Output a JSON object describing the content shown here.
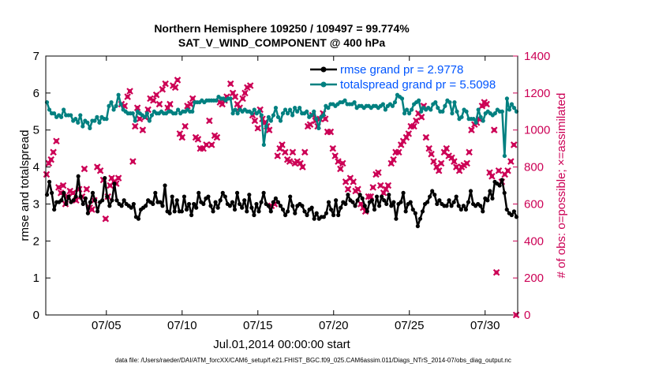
{
  "chart_data": {
    "type": "line",
    "title_line1": "Northern Hemisphere 109250 / 109497 = 99.774%",
    "title_line2": "SAT_V_WIND_COMPONENT @ 400 hPa",
    "xlabel": "Jul.01,2014 00:00:00 start",
    "ylabel_left": "rmse and totalspread",
    "ylabel_right": "# of obs: o=possible; ×=assimilated",
    "footer": "data file: /Users/raeder/DAI/ATM_forcXX/CAM6_setup/f.e21.FHIST_BGC.f09_025.CAM6assim.011/Diags_NTrS_2014-07/obs_diag_output.nc",
    "xlim": [
      1.0,
      32.15
    ],
    "ylim_left": [
      0,
      7
    ],
    "ylim_right": [
      0,
      1400
    ],
    "x_ticks": [
      5,
      10,
      15,
      20,
      25,
      30
    ],
    "x_tick_labels": [
      "07/05",
      "07/10",
      "07/15",
      "07/20",
      "07/25",
      "07/30"
    ],
    "y_left_ticks": [
      "0",
      "1",
      "2",
      "3",
      "4",
      "5",
      "6",
      "7"
    ],
    "y_right_ticks": [
      "0",
      "200",
      "400",
      "600",
      "800",
      "1000",
      "1200",
      "1400"
    ],
    "colors": {
      "rmse": "#000000",
      "spread": "#008080",
      "obs": "#cc0055",
      "legend_text": "#0055ff",
      "axis": "#000000"
    },
    "legend": [
      "rmse grand pr = 2.9778",
      "totalspread grand pr = 5.5098"
    ],
    "series": [
      {
        "name": "rmse",
        "values": [
          3.25,
          3.6,
          3.3,
          2.85,
          3.05,
          3.05,
          3.1,
          3.3,
          3.0,
          3.2,
          3.05,
          3.1,
          3.2,
          3.75,
          3.2,
          3.0,
          3.15,
          2.75,
          3.05,
          3.3,
          3.1,
          2.8,
          3.05,
          3.1,
          3.7,
          3.2,
          2.95,
          3.1,
          3.55,
          3.1,
          3.0,
          2.95,
          3.1,
          3.0,
          2.95,
          2.9,
          3.0,
          2.65,
          2.6,
          2.85,
          2.9,
          2.95,
          3.1,
          3.05,
          3.0,
          3.3,
          3.05,
          3.05,
          2.95,
          3.5,
          2.8,
          2.75,
          3.2,
          2.8,
          3.1,
          2.8,
          2.8,
          3.2,
          2.85,
          3.0,
          2.7,
          3.0,
          2.9,
          3.3,
          3.05,
          3.0,
          3.15,
          3.2,
          2.95,
          2.8,
          3.05,
          2.9,
          3.1,
          3.3,
          3.2,
          3.0,
          2.95,
          3.05,
          2.85,
          3.3,
          3.0,
          2.9,
          3.1,
          2.8,
          3.25,
          2.9,
          2.7,
          3.0,
          2.8,
          3.05,
          3.3,
          3.0,
          2.95,
          2.8,
          3.05,
          3.15,
          3.05,
          2.95,
          2.85,
          2.7,
          2.8,
          3.2,
          2.95,
          2.75,
          2.95,
          3.0,
          2.95,
          2.8,
          2.7,
          2.85,
          2.9,
          2.6,
          2.75,
          2.6,
          2.65,
          2.65,
          2.75,
          3.05,
          2.85,
          2.7,
          3.1,
          2.7,
          2.9,
          3.05,
          3.0,
          3.25,
          3.1,
          3.05,
          2.95,
          3.1,
          3.25,
          3.15,
          2.95,
          2.8,
          3.05,
          3.1,
          2.85,
          3.2,
          2.95,
          3.2,
          3.1,
          3.0,
          3.25,
          2.95,
          3.05,
          2.6,
          3.0,
          3.05,
          3.3,
          2.8,
          3.0,
          3.05,
          2.85,
          2.75,
          2.4,
          2.6,
          2.8,
          3.0,
          3.05,
          3.2,
          3.35,
          3.25,
          3.0,
          3.1,
          3.0,
          2.95,
          2.95,
          3.1,
          2.95,
          3.05,
          3.2,
          2.95,
          2.85,
          2.95,
          2.85,
          3.05,
          3.35,
          3.0,
          2.95,
          3.0,
          2.95,
          2.8,
          3.15,
          3.1,
          3.35,
          3.15,
          3.6,
          3.55,
          3.5,
          3.65,
          3.3,
          2.85,
          2.75,
          2.7,
          2.8,
          2.65
        ]
      },
      {
        "name": "totalspread",
        "values": [
          5.75,
          5.55,
          5.45,
          5.45,
          5.35,
          5.4,
          5.35,
          5.55,
          5.4,
          5.4,
          5.4,
          5.25,
          5.3,
          5.2,
          5.4,
          5.1,
          5.25,
          5.2,
          5.05,
          5.25,
          5.25,
          5.35,
          5.2,
          5.35,
          5.3,
          5.3,
          5.65,
          5.75,
          5.55,
          5.65,
          5.95,
          5.7,
          5.55,
          5.5,
          5.45,
          5.45,
          5.45,
          5.25,
          5.5,
          5.45,
          5.4,
          5.35,
          5.45,
          5.25,
          5.4,
          5.5,
          5.45,
          5.45,
          5.5,
          5.45,
          5.45,
          5.5,
          5.5,
          5.45,
          5.45,
          5.55,
          5.45,
          5.5,
          5.5,
          5.55,
          5.5,
          5.5,
          5.75,
          5.75,
          5.75,
          5.8,
          5.75,
          5.8,
          5.8,
          5.8,
          5.8,
          5.8,
          5.9,
          5.85,
          5.85,
          5.8,
          5.85,
          5.85,
          5.45,
          5.55,
          5.45,
          5.55,
          5.5,
          5.55,
          5.5,
          5.5,
          5.45,
          5.55,
          5.45,
          5.5,
          5.4,
          4.6,
          5.1,
          5.35,
          5.25,
          5.4,
          5.6,
          5.35,
          5.25,
          5.45,
          5.55,
          5.45,
          5.55,
          5.4,
          5.6,
          5.5,
          5.6,
          5.45,
          5.45,
          5.5,
          5.35,
          5.4,
          5.5,
          5.3,
          5.05,
          5.35,
          5.4,
          5.65,
          5.6,
          5.7,
          5.7,
          5.65,
          5.7,
          5.75,
          5.75,
          5.8,
          5.7,
          5.7,
          5.7,
          5.75,
          5.6,
          5.65,
          5.65,
          5.6,
          5.65,
          5.65,
          5.6,
          5.65,
          5.65,
          5.6,
          5.65,
          5.7,
          5.55,
          5.65,
          5.7,
          5.65,
          5.75,
          5.95,
          5.9,
          5.85,
          5.45,
          5.55,
          5.45,
          5.55,
          5.7,
          5.75,
          5.8,
          5.5,
          5.6,
          5.55,
          5.6,
          5.55,
          5.7,
          5.75,
          5.6,
          5.5,
          5.5,
          5.65,
          5.8,
          5.75,
          5.45,
          5.75,
          5.5,
          5.3,
          5.35,
          5.55,
          5.5,
          5.3,
          5.3,
          5.3,
          5.2,
          5.55,
          5.35,
          5.25,
          5.45,
          5.5,
          5.45,
          5.4,
          5.45,
          5.55,
          5.5,
          5.5,
          4.3,
          5.85,
          5.55,
          5.7,
          5.6,
          5.5
        ]
      }
    ],
    "obs_points": [
      [
        1.05,
        760
      ],
      [
        1.2,
        820
      ],
      [
        1.35,
        840
      ],
      [
        1.5,
        880
      ],
      [
        1.7,
        940
      ],
      [
        1.85,
        690
      ],
      [
        2.0,
        660
      ],
      [
        2.15,
        700
      ],
      [
        2.3,
        600
      ],
      [
        2.45,
        640
      ],
      [
        2.6,
        670
      ],
      [
        2.8,
        660
      ],
      [
        3.0,
        620
      ],
      [
        3.2,
        680
      ],
      [
        3.4,
        640
      ],
      [
        3.55,
        790
      ],
      [
        3.7,
        680
      ],
      [
        3.9,
        580
      ],
      [
        4.05,
        570
      ],
      [
        4.2,
        620
      ],
      [
        4.4,
        800
      ],
      [
        4.6,
        780
      ],
      [
        4.8,
        730
      ],
      [
        4.95,
        520
      ],
      [
        5.1,
        640
      ],
      [
        5.25,
        700
      ],
      [
        5.35,
        740
      ],
      [
        5.5,
        720
      ],
      [
        5.65,
        710
      ],
      [
        5.8,
        740
      ],
      [
        6.0,
        1140
      ],
      [
        6.2,
        1130
      ],
      [
        6.4,
        1180
      ],
      [
        6.55,
        1210
      ],
      [
        6.75,
        830
      ],
      [
        6.9,
        1020
      ],
      [
        7.05,
        1120
      ],
      [
        7.2,
        1060
      ],
      [
        7.4,
        1000
      ],
      [
        7.55,
        1070
      ],
      [
        7.75,
        1110
      ],
      [
        7.9,
        1170
      ],
      [
        8.1,
        1160
      ],
      [
        8.3,
        1190
      ],
      [
        8.5,
        1140
      ],
      [
        8.7,
        1220
      ],
      [
        8.9,
        1250
      ],
      [
        9.05,
        1120
      ],
      [
        9.2,
        1140
      ],
      [
        9.4,
        1240
      ],
      [
        9.55,
        1230
      ],
      [
        9.7,
        1270
      ],
      [
        9.85,
        980
      ],
      [
        10.0,
        960
      ],
      [
        10.2,
        1020
      ],
      [
        10.35,
        1130
      ],
      [
        10.55,
        1140
      ],
      [
        10.7,
        1170
      ],
      [
        10.9,
        960
      ],
      [
        11.05,
        950
      ],
      [
        11.2,
        900
      ],
      [
        11.4,
        900
      ],
      [
        11.6,
        920
      ],
      [
        11.8,
        1050
      ],
      [
        11.95,
        920
      ],
      [
        12.15,
        970
      ],
      [
        12.3,
        960
      ],
      [
        12.5,
        1150
      ],
      [
        12.65,
        1140
      ],
      [
        12.8,
        1160
      ],
      [
        12.95,
        1180
      ],
      [
        13.2,
        1250
      ],
      [
        13.35,
        1200
      ],
      [
        13.5,
        1180
      ],
      [
        13.65,
        1140
      ],
      [
        13.8,
        1120
      ],
      [
        14.0,
        1170
      ],
      [
        14.15,
        1200
      ],
      [
        14.3,
        1230
      ],
      [
        14.5,
        1240
      ],
      [
        14.65,
        1080
      ],
      [
        14.8,
        1050
      ],
      [
        15.0,
        1010
      ],
      [
        15.15,
        1110
      ],
      [
        15.3,
        1060
      ],
      [
        15.45,
        1040
      ],
      [
        15.6,
        1020
      ],
      [
        15.75,
        1000
      ],
      [
        15.9,
        590
      ],
      [
        16.1,
        600
      ],
      [
        16.3,
        860
      ],
      [
        16.45,
        900
      ],
      [
        16.6,
        920
      ],
      [
        16.8,
        880
      ],
      [
        16.95,
        840
      ],
      [
        17.1,
        830
      ],
      [
        17.3,
        880
      ],
      [
        17.45,
        820
      ],
      [
        17.6,
        830
      ],
      [
        17.8,
        820
      ],
      [
        17.95,
        800
      ],
      [
        18.1,
        880
      ],
      [
        18.3,
        1020
      ],
      [
        18.45,
        1030
      ],
      [
        18.6,
        1080
      ],
      [
        18.8,
        1050
      ],
      [
        18.95,
        1020
      ],
      [
        19.1,
        1060
      ],
      [
        19.3,
        1090
      ],
      [
        19.45,
        1060
      ],
      [
        19.6,
        990
      ],
      [
        19.8,
        990
      ],
      [
        19.95,
        900
      ],
      [
        20.1,
        860
      ],
      [
        20.3,
        830
      ],
      [
        20.45,
        790
      ],
      [
        20.6,
        820
      ],
      [
        20.8,
        720
      ],
      [
        20.95,
        680
      ],
      [
        21.1,
        740
      ],
      [
        21.3,
        720
      ],
      [
        21.45,
        670
      ],
      [
        21.6,
        680
      ],
      [
        21.8,
        600
      ],
      [
        21.95,
        580
      ],
      [
        22.1,
        560
      ],
      [
        22.3,
        640
      ],
      [
        22.45,
        640
      ],
      [
        22.6,
        690
      ],
      [
        22.8,
        760
      ],
      [
        22.95,
        770
      ],
      [
        23.1,
        700
      ],
      [
        23.3,
        660
      ],
      [
        23.45,
        680
      ],
      [
        23.6,
        700
      ],
      [
        23.8,
        820
      ],
      [
        23.95,
        840
      ],
      [
        24.1,
        880
      ],
      [
        24.3,
        880
      ],
      [
        24.45,
        920
      ],
      [
        24.6,
        940
      ],
      [
        24.8,
        960
      ],
      [
        24.95,
        980
      ],
      [
        25.1,
        1020
      ],
      [
        25.3,
        1020
      ],
      [
        25.45,
        1050
      ],
      [
        25.6,
        1090
      ],
      [
        25.8,
        1070
      ],
      [
        25.95,
        1130
      ],
      [
        26.1,
        960
      ],
      [
        26.3,
        900
      ],
      [
        26.45,
        870
      ],
      [
        26.6,
        830
      ],
      [
        26.8,
        800
      ],
      [
        26.95,
        780
      ],
      [
        27.1,
        820
      ],
      [
        27.3,
        880
      ],
      [
        27.45,
        900
      ],
      [
        27.6,
        860
      ],
      [
        27.8,
        850
      ],
      [
        27.95,
        830
      ],
      [
        28.1,
        800
      ],
      [
        28.3,
        780
      ],
      [
        28.45,
        800
      ],
      [
        28.6,
        810
      ],
      [
        28.8,
        820
      ],
      [
        28.95,
        880
      ],
      [
        29.1,
        1000
      ],
      [
        29.3,
        1030
      ],
      [
        29.45,
        1040
      ],
      [
        29.6,
        1060
      ],
      [
        29.8,
        1130
      ],
      [
        29.95,
        1150
      ],
      [
        30.1,
        1140
      ],
      [
        30.3,
        770
      ],
      [
        30.45,
        750
      ],
      [
        30.6,
        1000
      ],
      [
        30.75,
        230
      ],
      [
        30.9,
        780
      ],
      [
        31.1,
        720
      ],
      [
        31.3,
        760
      ],
      [
        31.5,
        780
      ],
      [
        31.7,
        830
      ],
      [
        31.9,
        920
      ],
      [
        32.05,
        0
      ]
    ]
  }
}
